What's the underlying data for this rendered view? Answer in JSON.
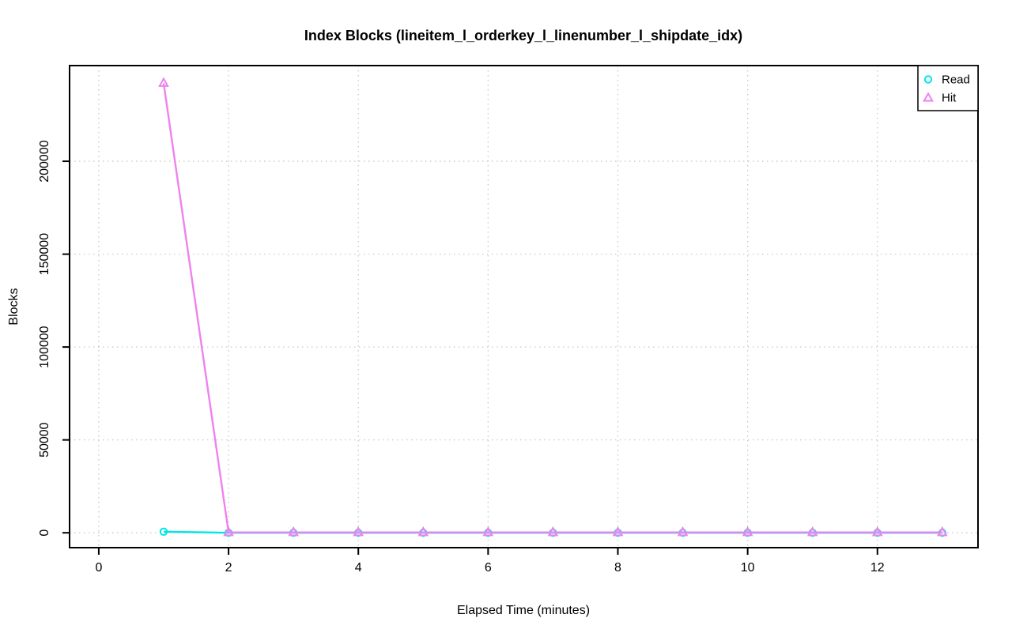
{
  "chart_data": {
    "type": "line",
    "title": "Index Blocks (lineitem_l_orderkey_l_linenumber_l_shipdate_idx)",
    "xlabel": "Elapsed Time (minutes)",
    "ylabel": "Blocks",
    "x": [
      1,
      2,
      3,
      4,
      5,
      6,
      7,
      8,
      9,
      10,
      11,
      12,
      13
    ],
    "series": [
      {
        "name": "Read",
        "marker": "circle",
        "color": "#00E5E5",
        "values": [
          600,
          0,
          0,
          0,
          0,
          0,
          0,
          0,
          0,
          0,
          0,
          0,
          0
        ]
      },
      {
        "name": "Hit",
        "marker": "triangle",
        "color": "#EE82EE",
        "values": [
          242000,
          200,
          200,
          200,
          200,
          200,
          200,
          200,
          200,
          200,
          200,
          200,
          200
        ]
      }
    ],
    "xlim": [
      -0.45,
      13.55
    ],
    "ylim": [
      -8000,
      251500
    ],
    "xticks": {
      "values": [
        0,
        2,
        4,
        6,
        8,
        10,
        12
      ],
      "labels": [
        "0",
        "2",
        "4",
        "6",
        "8",
        "10",
        "12"
      ]
    },
    "yticks": {
      "values": [
        0,
        50000,
        100000,
        150000,
        200000
      ],
      "labels": [
        "0",
        "50000",
        "100000",
        "150000",
        "200000"
      ]
    },
    "grid": true,
    "grid_style": "dotted",
    "grid_color": "#C8C8C8",
    "legend_position": "top-right",
    "background": "#FFFFFF"
  }
}
